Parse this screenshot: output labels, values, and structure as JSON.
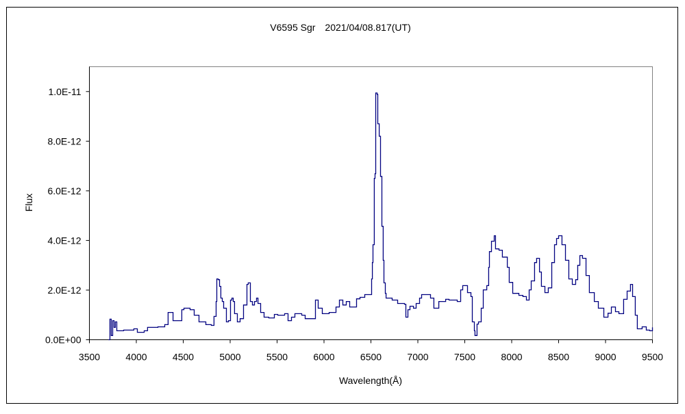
{
  "chart_data": {
    "type": "line",
    "title": "V6595 Sgr　2021/04/08.817(UT)",
    "xlabel": "Wavelength(Å)",
    "ylabel": "Flux",
    "xlim": [
      3500,
      9500
    ],
    "ylim": [
      0,
      1.1e-11
    ],
    "grid": false,
    "legend": "none",
    "line_color": "#000080",
    "x_ticks": [
      3500,
      4000,
      4500,
      5000,
      5500,
      6000,
      6500,
      7000,
      7500,
      8000,
      8500,
      9000,
      9500
    ],
    "x_tick_labels": [
      "3500",
      "4000",
      "4500",
      "5000",
      "5500",
      "6000",
      "6500",
      "7000",
      "7500",
      "8000",
      "8500",
      "9000",
      "9500"
    ],
    "y_ticks": [
      0,
      2e-12,
      4e-12,
      6e-12,
      8e-12,
      1e-11
    ],
    "y_tick_labels": [
      "0.0E+00",
      "2.0E-12",
      "4.0E-12",
      "6.0E-12",
      "8.0E-12",
      "1.0E-11"
    ],
    "y_unit_scale": 1e-12,
    "series": [
      {
        "name": "V6595 Sgr",
        "x": [
          3704,
          3719,
          3733,
          3748,
          3763,
          3777,
          3792,
          3865,
          3974,
          4011,
          4084,
          4120,
          4230,
          4303,
          4339,
          4391,
          4434,
          4485,
          4507,
          4573,
          4617,
          4668,
          4741,
          4799,
          4828,
          4850,
          4858,
          4872,
          4887,
          4901,
          4916,
          4931,
          4960,
          4982,
          5004,
          5018,
          5033,
          5047,
          5077,
          5106,
          5142,
          5179,
          5193,
          5215,
          5237,
          5259,
          5281,
          5296,
          5325,
          5361,
          5412,
          5471,
          5507,
          5580,
          5617,
          5653,
          5690,
          5763,
          5799,
          5887,
          5909,
          5938,
          5982,
          6055,
          6128,
          6164,
          6201,
          6237,
          6274,
          6310,
          6347,
          6383,
          6434,
          6493,
          6507,
          6515,
          6522,
          6536,
          6544,
          6551,
          6566,
          6573,
          6588,
          6602,
          6617,
          6631,
          6639,
          6653,
          6661,
          6726,
          6785,
          6858,
          6872,
          6894,
          6916,
          6953,
          6982,
          7018,
          7040,
          7091,
          7135,
          7171,
          7201,
          7223,
          7296,
          7332,
          7420,
          7456,
          7478,
          7500,
          7529,
          7566,
          7580,
          7602,
          7609,
          7631,
          7646,
          7675,
          7697,
          7734,
          7755,
          7763,
          7785,
          7814,
          7828,
          7865,
          7901,
          7953,
          7974,
          8011,
          8077,
          8120,
          8157,
          8186,
          8208,
          8244,
          8266,
          8296,
          8317,
          8354,
          8390,
          8427,
          8456,
          8478,
          8500,
          8536,
          8573,
          8609,
          8646,
          8682,
          8704,
          8726,
          8755,
          8792,
          8828,
          8880,
          8923,
          8982,
          9026,
          9062,
          9106,
          9142,
          9171,
          9193,
          9230,
          9266,
          9288,
          9317,
          9339,
          9390,
          9434,
          9471,
          9500
        ],
        "y": [
          0,
          0.83,
          0.17,
          0.77,
          0.5,
          0.72,
          0.36,
          0.39,
          0.44,
          0.3,
          0.36,
          0.5,
          0.52,
          0.61,
          1.1,
          0.77,
          0.77,
          1.21,
          1.27,
          1.21,
          0.99,
          0.72,
          0.61,
          0.58,
          0.94,
          1.54,
          2.45,
          2.42,
          2.15,
          1.68,
          1.54,
          1.27,
          0.72,
          0.77,
          1.6,
          1.68,
          1.54,
          1.05,
          0.72,
          0.85,
          1.4,
          2.23,
          2.29,
          1.54,
          1.4,
          1.54,
          1.68,
          1.46,
          1.1,
          0.91,
          0.88,
          1.02,
          0.99,
          1.05,
          0.77,
          0.91,
          1.05,
          0.99,
          0.85,
          0.85,
          1.6,
          1.27,
          1.05,
          1.1,
          1.32,
          1.6,
          1.4,
          1.54,
          1.32,
          1.32,
          1.65,
          1.71,
          1.82,
          1.82,
          2.45,
          3.11,
          3.83,
          6.5,
          6.69,
          9.94,
          9.89,
          8.7,
          8.2,
          6.58,
          4.57,
          3.2,
          2.29,
          1.87,
          1.68,
          1.6,
          1.46,
          1.43,
          0.91,
          1.21,
          1.35,
          1.27,
          1.46,
          1.68,
          1.82,
          1.82,
          1.68,
          1.27,
          1.27,
          1.54,
          1.63,
          1.6,
          1.54,
          2.01,
          2.18,
          2.18,
          1.9,
          1.74,
          0.72,
          0.36,
          0.17,
          0.63,
          0.72,
          1.27,
          2.01,
          2.18,
          2.92,
          3.55,
          3.97,
          4.19,
          3.66,
          3.61,
          3.33,
          2.92,
          2.31,
          1.87,
          1.79,
          1.74,
          1.6,
          2.01,
          2.37,
          3.11,
          3.28,
          2.73,
          2.15,
          1.9,
          2.09,
          3.11,
          3.83,
          4.08,
          4.19,
          3.83,
          3.2,
          2.45,
          2.23,
          2.42,
          3.0,
          3.39,
          3.28,
          2.59,
          1.9,
          1.54,
          1.27,
          0.91,
          1.07,
          1.32,
          1.13,
          1.05,
          1.05,
          1.63,
          1.96,
          2.23,
          1.74,
          0.99,
          0.44,
          0.52,
          0.39,
          0.36,
          0.5
        ]
      }
    ]
  }
}
